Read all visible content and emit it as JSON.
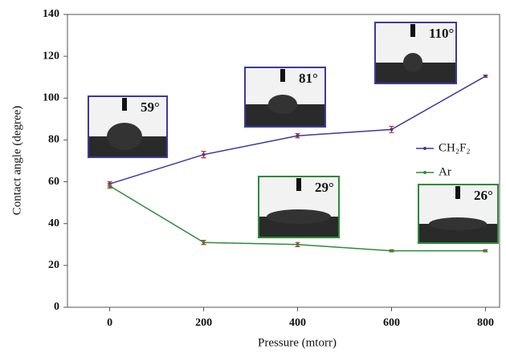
{
  "chart_data": {
    "type": "line",
    "xlabel": "Pressure (mtorr)",
    "ylabel": "Contact angle (degree)",
    "x": [
      0,
      200,
      400,
      600,
      800
    ],
    "series": [
      {
        "name": "CH₂F₂",
        "color": "#3b3a9a",
        "values": [
          59,
          73,
          82,
          85,
          110.5
        ],
        "errors": [
          1,
          1.5,
          1,
          1.5,
          0.5
        ]
      },
      {
        "name": "Ar",
        "color": "#2e8b3a",
        "values": [
          58,
          31,
          30,
          27,
          27
        ],
        "errors": [
          1,
          1,
          1,
          0.5,
          0.5
        ]
      }
    ],
    "xlim": [
      -90,
      830
    ],
    "xticks": [
      0,
      200,
      400,
      600,
      800
    ],
    "ylim": [
      0,
      140
    ],
    "yticks": [
      0,
      20,
      40,
      60,
      80,
      100,
      120,
      140
    ],
    "legend": "right",
    "annotations": [
      "59°",
      "81°",
      "110°",
      "29°",
      "26°"
    ]
  }
}
